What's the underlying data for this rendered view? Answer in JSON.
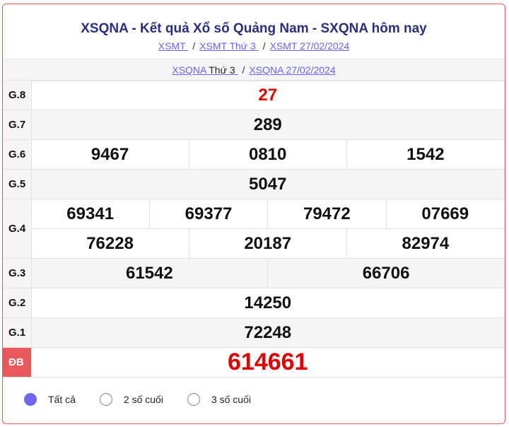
{
  "header": {
    "title": "XSQNA - Kết quả Xổ số Quảng Nam - SXQNA hôm nay",
    "breadcrumbs": [
      "XSMT ",
      "XSMT Thứ 3 ",
      "XSMT 27/02/2024"
    ],
    "sub_links": {
      "a_link": "XSQNA",
      "a_text": " Thứ 3 ",
      "b_link": "XSQNA 27/02/2024"
    },
    "separator": "/"
  },
  "results": {
    "g8": {
      "label": "G.8",
      "values": [
        "27"
      ]
    },
    "g7": {
      "label": "G.7",
      "values": [
        "289"
      ]
    },
    "g6": {
      "label": "G.6",
      "values": [
        "9467",
        "0810",
        "1542"
      ]
    },
    "g5": {
      "label": "G.5",
      "values": [
        "5047"
      ]
    },
    "g4": {
      "label": "G.4",
      "values": [
        "69341",
        "69377",
        "79472",
        "07669",
        "76228",
        "20187",
        "82974"
      ]
    },
    "g3": {
      "label": "G.3",
      "values": [
        "61542",
        "66706"
      ]
    },
    "g2": {
      "label": "G.2",
      "values": [
        "14250"
      ]
    },
    "g1": {
      "label": "G.1",
      "values": [
        "72248"
      ]
    },
    "db": {
      "label": "ĐB",
      "values": [
        "614661"
      ]
    }
  },
  "filters": [
    {
      "label": "Tất cả",
      "selected": true
    },
    {
      "label": "2 số cuối",
      "selected": false
    },
    {
      "label": "3 số cuối",
      "selected": false
    }
  ],
  "colors": {
    "accent": "#6f66f0",
    "border": "#e8585c",
    "title": "#2b2e7a",
    "prize_red": "#e00000"
  }
}
